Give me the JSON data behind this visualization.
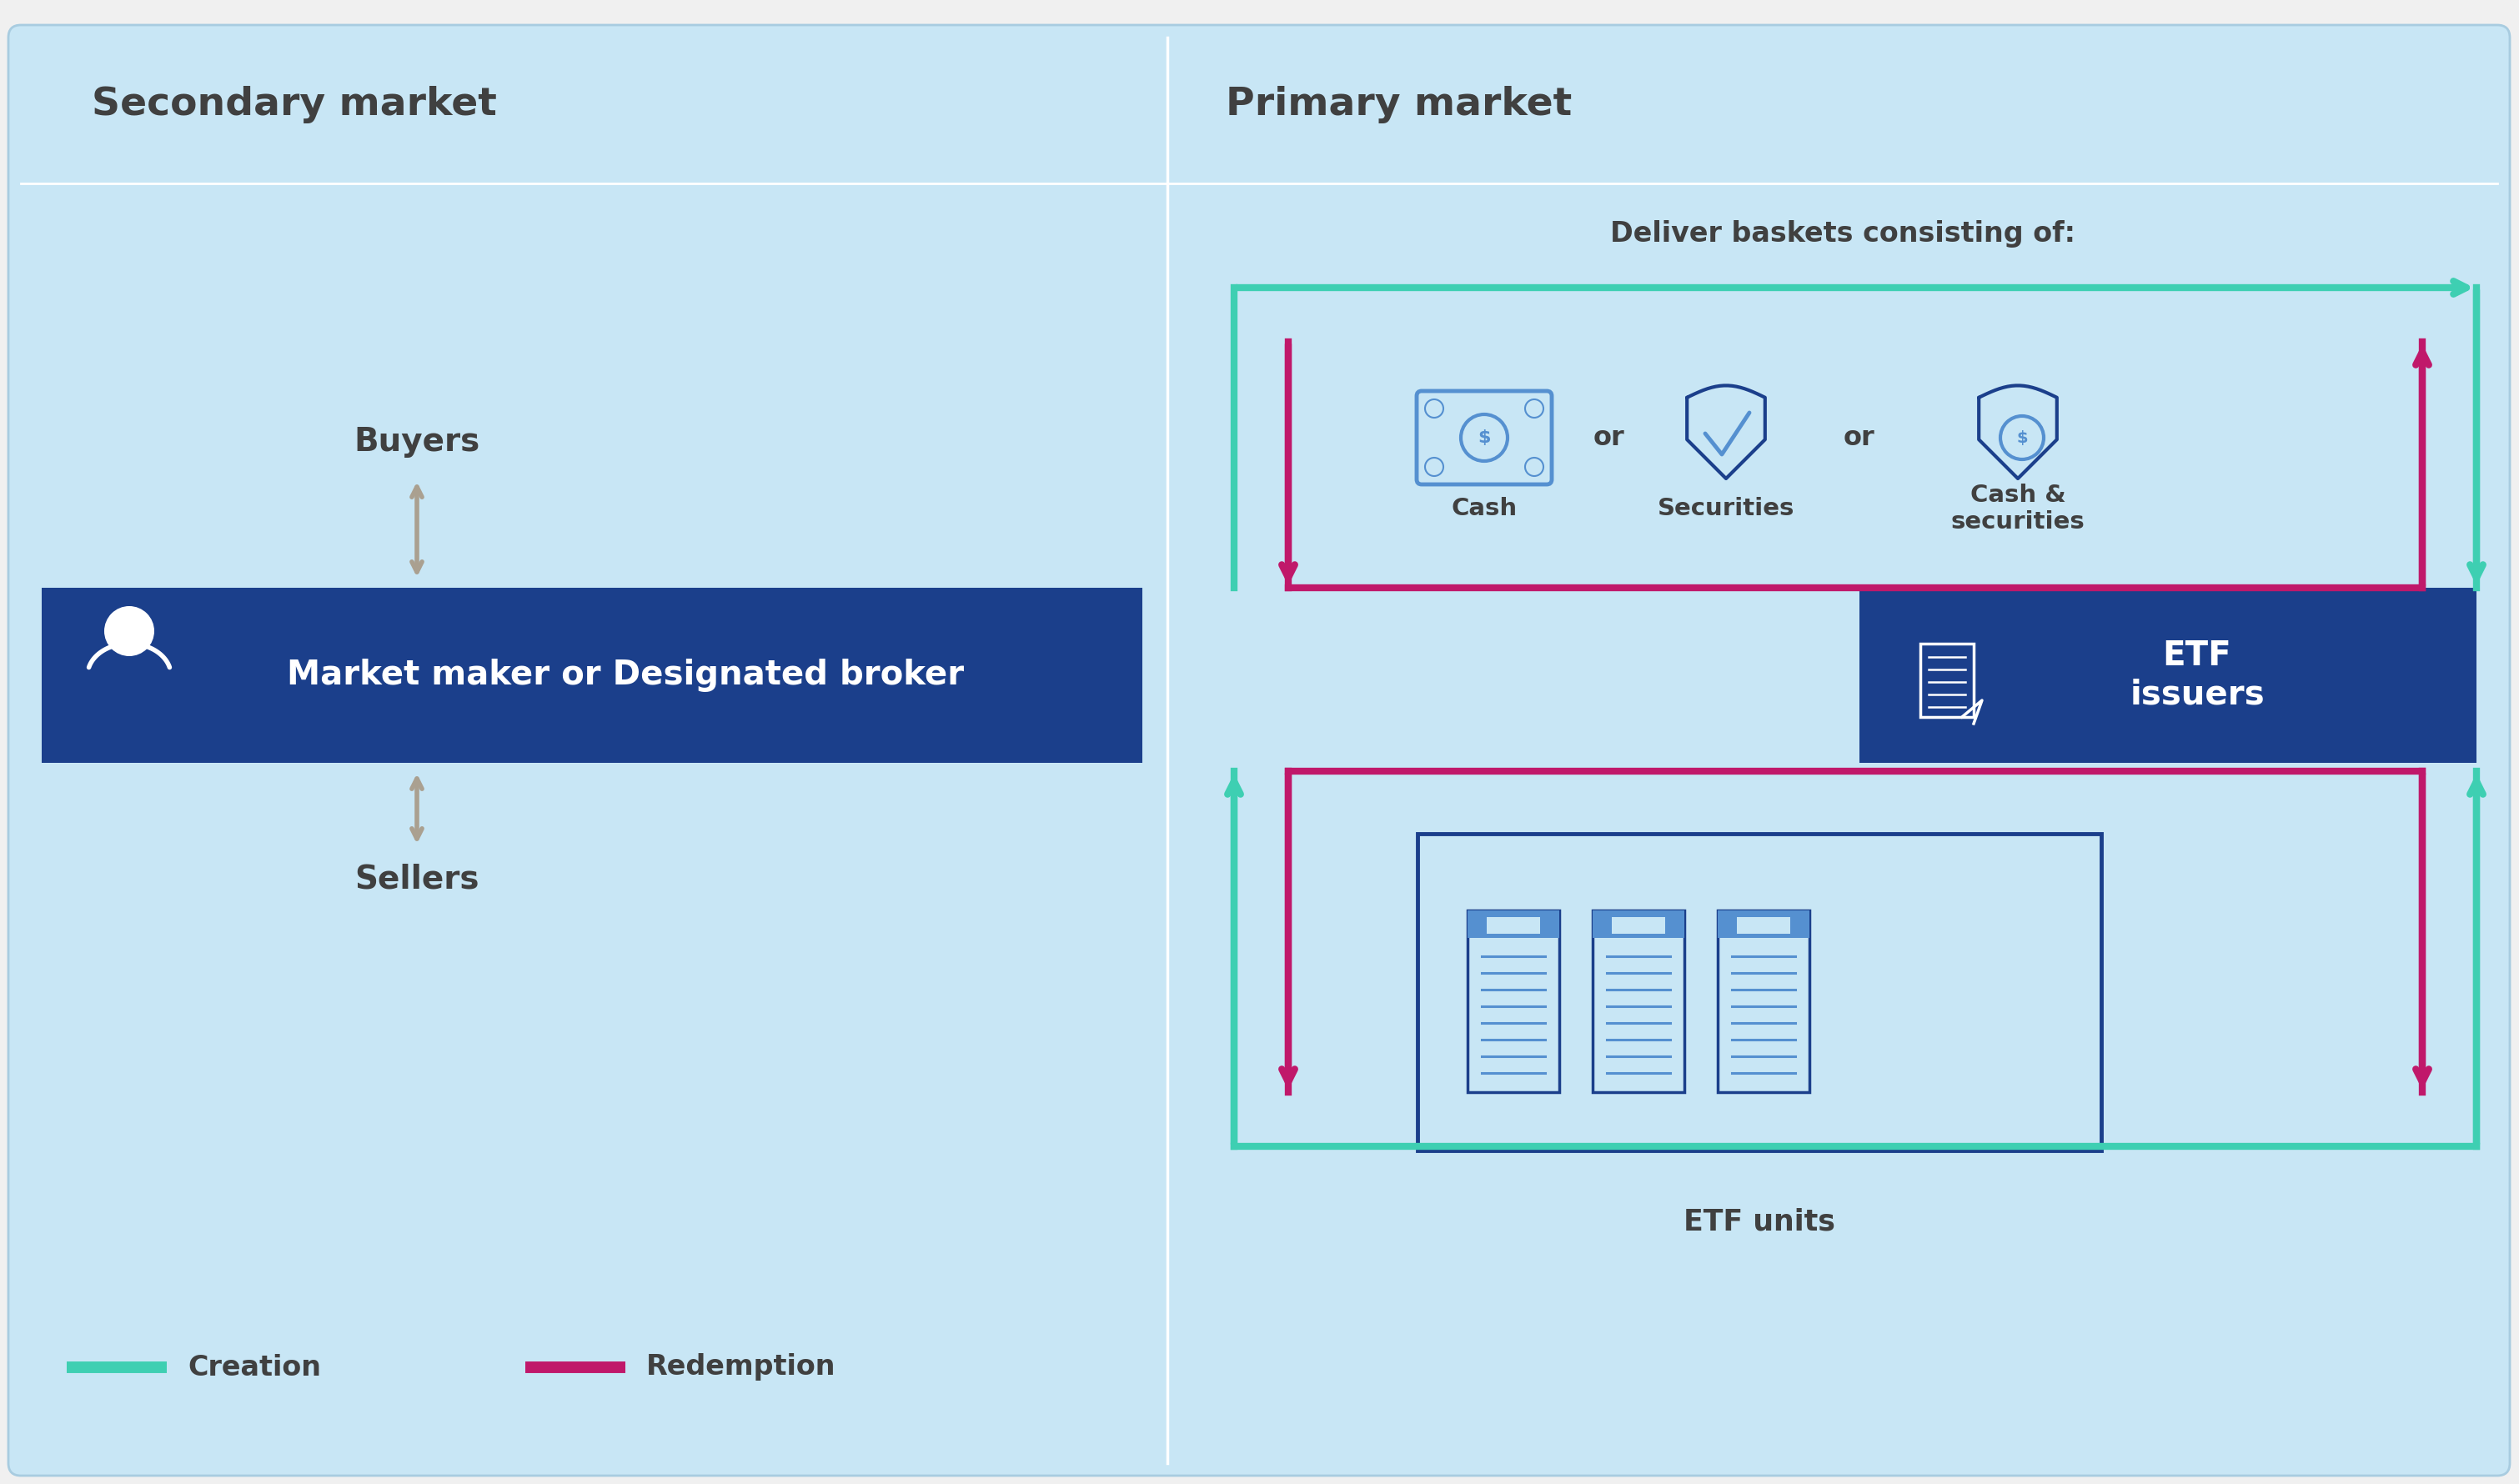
{
  "bg_outer": "#f0f0f0",
  "bg_light_blue": "#c8e6f5",
  "bg_light_blue2": "#d8eef8",
  "bg_dark_blue": "#1b3f8b",
  "text_dark": "#404040",
  "text_white": "#ffffff",
  "color_creation": "#3ecfb2",
  "color_redemption": "#c0186a",
  "color_arrow_gray": "#aaa090",
  "color_icon_blue": "#1b3f8b",
  "color_icon_light": "#5590d0",
  "secondary_market_title": "Secondary market",
  "primary_market_title": "Primary market",
  "deliver_baskets_title": "Deliver baskets consisting of:",
  "buyers_label": "Buyers",
  "sellers_label": "Sellers",
  "market_maker_label": "Market maker or Designated broker",
  "etf_issuers_label": "ETF\nissuers",
  "etf_units_label": "ETF units",
  "cash_label": "Cash",
  "securities_label": "Securities",
  "cash_sec_label": "Cash &\nsecurities",
  "creation_label": "Creation",
  "redemption_label": "Redemption",
  "or_text": "or"
}
